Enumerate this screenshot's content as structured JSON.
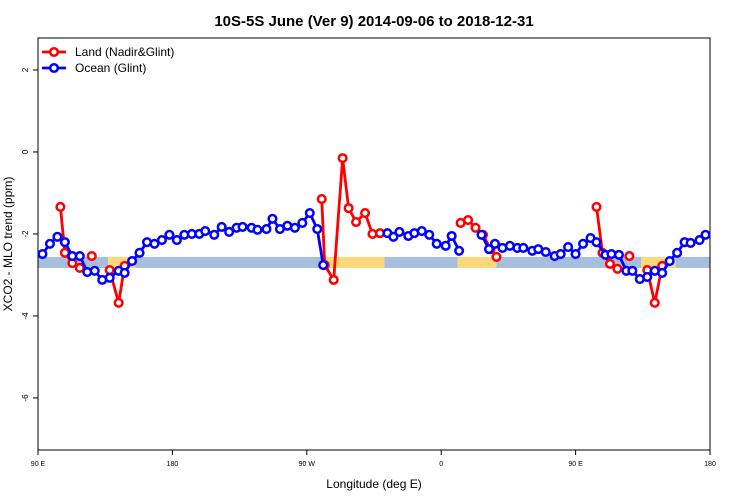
{
  "chart_data": {
    "type": "line",
    "title": "10S-5S June (Ver 9)   2014-09-06 to 2018-12-31",
    "xlabel": "Longitude (deg E)",
    "ylabel": "XCO2 - MLO trend (ppm)",
    "xlim": [
      90,
      540
    ],
    "ylim": [
      -7.27,
      2.78
    ],
    "xticks": [
      {
        "value": 90,
        "label": "90 E"
      },
      180,
      {
        "value": 270,
        "label": "90 W"
      },
      {
        "value": 360,
        "label": "0"
      },
      {
        "value": 450,
        "label": "90 E"
      },
      {
        "value": 540,
        "label": "180"
      }
    ],
    "yticks": [
      2,
      0,
      -2,
      -4,
      -6
    ],
    "legend": "top-left",
    "band": {
      "ylow": -2.83,
      "yhigh": -2.56,
      "segments": [
        {
          "x0": 90,
          "x1": 137,
          "color": "#a7bfdc"
        },
        {
          "x0": 137,
          "x1": 155,
          "color": "#fdd97c"
        },
        {
          "x0": 155,
          "x1": 280,
          "color": "#a7bfdc"
        },
        {
          "x0": 280,
          "x1": 322,
          "color": "#fdd97c"
        },
        {
          "x0": 322,
          "x1": 371,
          "color": "#a7bfdc"
        },
        {
          "x0": 371,
          "x1": 397,
          "color": "#fdd97c"
        },
        {
          "x0": 397,
          "x1": 494,
          "color": "#a7bfdc"
        },
        {
          "x0": 494,
          "x1": 517,
          "color": "#fdd97c"
        },
        {
          "x0": 517,
          "x1": 540,
          "color": "#a7bfdc"
        }
      ]
    },
    "series": [
      {
        "name": "Land (Nadir&Glint)",
        "color": "#ff0000",
        "x": [
          105,
          108,
          113,
          118,
          122,
          126,
          132,
          138,
          144,
          148,
          200,
          280,
          282,
          288,
          294,
          298,
          303,
          309,
          314,
          319,
          350,
          373,
          378,
          383,
          388,
          393,
          397,
          430,
          464,
          468,
          473,
          478,
          482,
          486,
          492,
          498,
          503,
          508
        ],
        "values": [
          -1.34,
          -2.46,
          -2.71,
          -2.83,
          null,
          -2.54,
          null,
          -2.88,
          -3.68,
          -2.78,
          null,
          -1.15,
          -2.76,
          -3.12,
          -0.15,
          -1.37,
          -1.71,
          -1.49,
          -2.0,
          -1.98,
          null,
          -1.73,
          -1.66,
          -1.85,
          -2.02,
          -2.37,
          -2.56,
          null,
          -1.34,
          -2.46,
          -2.73,
          -2.85,
          null,
          -2.54,
          null,
          -2.88,
          -3.68,
          -2.78
        ]
      },
      {
        "name": "Ocean (Glint)",
        "color": "#0000ff",
        "x": [
          93,
          98,
          103,
          108,
          113,
          118,
          123,
          128,
          133,
          138,
          144,
          148,
          153,
          158,
          163,
          168,
          173,
          178,
          183,
          188,
          193,
          198,
          202,
          208,
          213,
          218,
          223,
          227,
          233,
          237,
          243,
          247,
          252,
          257,
          262,
          267,
          272,
          277,
          281,
          300,
          324,
          328,
          332,
          338,
          342,
          347,
          352,
          357,
          363,
          367,
          372,
          380,
          387,
          392,
          396,
          401,
          406,
          411,
          415,
          421,
          425,
          430,
          436,
          440,
          445,
          450,
          455,
          460,
          464,
          470,
          474,
          479,
          484,
          488,
          493,
          498,
          503,
          508,
          513,
          518,
          523,
          527,
          533,
          537
        ],
        "values": [
          -2.49,
          -2.24,
          -2.07,
          -2.2,
          -2.54,
          -2.54,
          -2.93,
          -2.9,
          -3.12,
          -3.07,
          -2.9,
          -2.95,
          -2.66,
          -2.46,
          -2.2,
          -2.24,
          -2.15,
          -2.02,
          -2.15,
          -2.02,
          -2.0,
          -2.0,
          -1.93,
          -2.02,
          -1.83,
          -1.95,
          -1.85,
          -1.83,
          -1.85,
          -1.9,
          -1.88,
          -1.63,
          -1.88,
          -1.8,
          -1.85,
          -1.73,
          -1.49,
          -1.88,
          -2.76,
          null,
          -1.98,
          -2.07,
          -1.95,
          -2.05,
          -1.98,
          -1.93,
          -2.02,
          -2.24,
          -2.29,
          -2.05,
          -2.41,
          null,
          -2.02,
          -2.37,
          -2.24,
          -2.34,
          -2.29,
          -2.34,
          -2.34,
          -2.41,
          -2.37,
          -2.44,
          -2.54,
          -2.49,
          -2.32,
          -2.49,
          -2.24,
          -2.1,
          -2.2,
          -2.51,
          -2.49,
          -2.51,
          -2.9,
          -2.9,
          -3.1,
          -3.05,
          -2.9,
          -2.95,
          -2.66,
          -2.46,
          -2.2,
          -2.22,
          -2.15,
          -2.02
        ]
      }
    ]
  }
}
